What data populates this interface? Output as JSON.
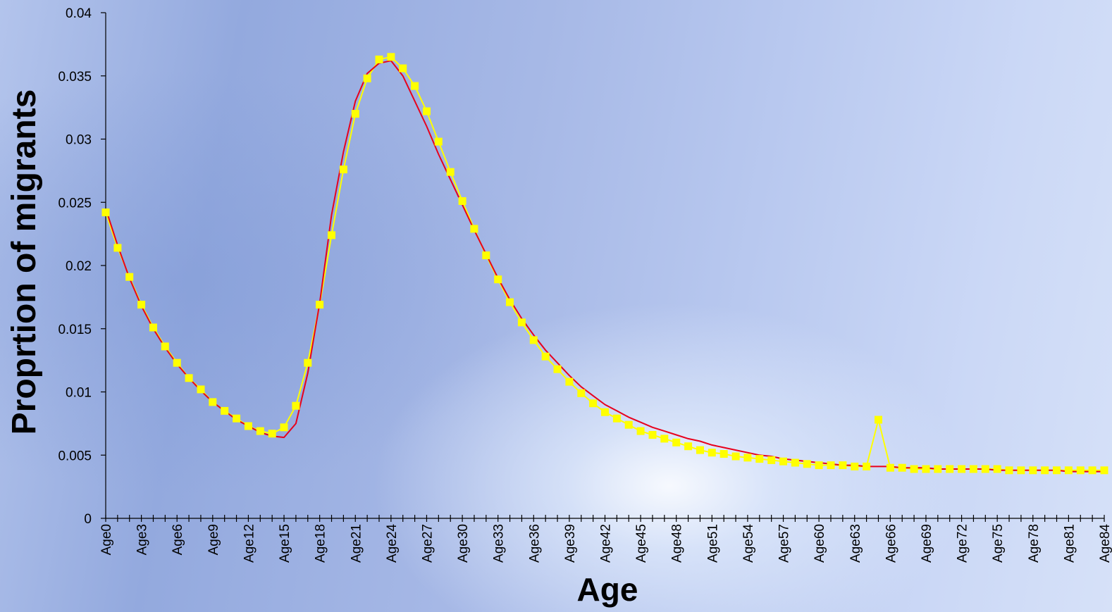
{
  "chart_data": {
    "type": "line",
    "title": "",
    "xlabel": "Age",
    "ylabel": "Proprtion of migrants",
    "ylim": [
      0,
      0.04
    ],
    "yticks": [
      "0",
      "0.005",
      "0.01",
      "0.015",
      "0.02",
      "0.025",
      "0.03",
      "0.035",
      "0.04"
    ],
    "grid": false,
    "legend": "none",
    "categories": [
      "Age0",
      "Age1",
      "Age2",
      "Age3",
      "Age4",
      "Age5",
      "Age6",
      "Age7",
      "Age8",
      "Age9",
      "Age10",
      "Age11",
      "Age12",
      "Age13",
      "Age14",
      "Age15",
      "Age16",
      "Age17",
      "Age18",
      "Age19",
      "Age20",
      "Age21",
      "Age22",
      "Age23",
      "Age24",
      "Age25",
      "Age26",
      "Age27",
      "Age28",
      "Age29",
      "Age30",
      "Age31",
      "Age32",
      "Age33",
      "Age34",
      "Age35",
      "Age36",
      "Age37",
      "Age38",
      "Age39",
      "Age40",
      "Age41",
      "Age42",
      "Age43",
      "Age44",
      "Age45",
      "Age46",
      "Age47",
      "Age48",
      "Age49",
      "Age50",
      "Age51",
      "Age52",
      "Age53",
      "Age54",
      "Age55",
      "Age56",
      "Age57",
      "Age58",
      "Age59",
      "Age60",
      "Age61",
      "Age62",
      "Age63",
      "Age64",
      "Age65",
      "Age66",
      "Age67",
      "Age68",
      "Age69",
      "Age70",
      "Age71",
      "Age72",
      "Age73",
      "Age74",
      "Age75",
      "Age76",
      "Age77",
      "Age78",
      "Age79",
      "Age80",
      "Age81",
      "Age82",
      "Age83",
      "Age84"
    ],
    "xtick_labels": [
      "Age0",
      "Age3",
      "Age6",
      "Age9",
      "Age12",
      "Age15",
      "Age18",
      "Age21",
      "Age24",
      "Age27",
      "Age30",
      "Age33",
      "Age36",
      "Age39",
      "Age42",
      "Age45",
      "Age48",
      "Age51",
      "Age54",
      "Age57",
      "Age60",
      "Age63",
      "Age66",
      "Age69",
      "Age72",
      "Age75",
      "Age78",
      "Age81",
      "Age84"
    ],
    "series": [
      {
        "color": "#ffff00",
        "marker": "square",
        "values": [
          0.0242,
          0.0214,
          0.0191,
          0.0169,
          0.0151,
          0.0136,
          0.0123,
          0.0111,
          0.0102,
          0.0092,
          0.0085,
          0.0079,
          0.0073,
          0.0069,
          0.0067,
          0.0072,
          0.0089,
          0.0123,
          0.0169,
          0.0224,
          0.0276,
          0.032,
          0.0348,
          0.0363,
          0.0365,
          0.0356,
          0.0342,
          0.0322,
          0.0298,
          0.0274,
          0.0251,
          0.0229,
          0.0208,
          0.0189,
          0.0171,
          0.0155,
          0.0141,
          0.0128,
          0.0118,
          0.0108,
          0.0099,
          0.0091,
          0.0084,
          0.0079,
          0.0074,
          0.0069,
          0.0066,
          0.0063,
          0.006,
          0.0057,
          0.0054,
          0.0052,
          0.0051,
          0.0049,
          0.0048,
          0.0047,
          0.0046,
          0.0045,
          0.0044,
          0.0043,
          0.0042,
          0.0042,
          0.0042,
          0.0041,
          0.0041,
          0.0078,
          0.004,
          0.004,
          0.0039,
          0.0039,
          0.0039,
          0.0039,
          0.0039,
          0.0039,
          0.0039,
          0.0039,
          0.0038,
          0.0038,
          0.0038,
          0.0038,
          0.0038,
          0.0038,
          0.0038,
          0.0038,
          0.0038
        ]
      },
      {
        "color": "#e8001c",
        "marker": "none",
        "values": [
          0.0245,
          0.0216,
          0.019,
          0.0168,
          0.015,
          0.0135,
          0.0122,
          0.0111,
          0.0101,
          0.0092,
          0.0085,
          0.0078,
          0.0073,
          0.0068,
          0.0065,
          0.0064,
          0.0075,
          0.0115,
          0.017,
          0.024,
          0.029,
          0.033,
          0.0352,
          0.036,
          0.0362,
          0.035,
          0.033,
          0.031,
          0.0288,
          0.0268,
          0.0248,
          0.0228,
          0.0209,
          0.019,
          0.0173,
          0.0158,
          0.0145,
          0.0133,
          0.0123,
          0.0113,
          0.0104,
          0.0097,
          0.009,
          0.0085,
          0.008,
          0.0076,
          0.0072,
          0.0069,
          0.0066,
          0.0063,
          0.0061,
          0.0058,
          0.0056,
          0.0054,
          0.0052,
          0.005,
          0.0049,
          0.0047,
          0.0046,
          0.0045,
          0.0044,
          0.0043,
          0.0042,
          0.0042,
          0.0041,
          0.0041,
          0.0041,
          0.004,
          0.004,
          0.004,
          0.0039,
          0.0039,
          0.0039,
          0.0039,
          0.0039,
          0.0038,
          0.0038,
          0.0038,
          0.0038,
          0.0038,
          0.0038,
          0.0037,
          0.0037,
          0.0037,
          0.0037
        ]
      }
    ]
  }
}
